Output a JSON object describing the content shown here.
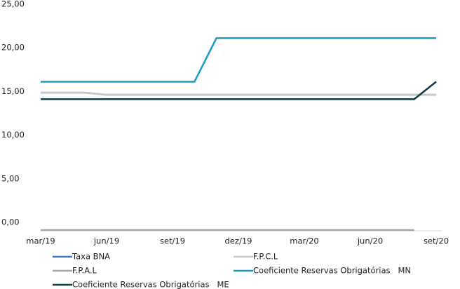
{
  "chart_data": {
    "type": "line",
    "categories": [
      "mar/19",
      null,
      null,
      "jun/19",
      null,
      null,
      "set/19",
      null,
      null,
      "dez/19",
      null,
      null,
      "mar/20",
      null,
      null,
      "jun/20",
      null,
      null,
      "set/20"
    ],
    "series": [
      {
        "name": "Taxa BNA",
        "color": "#4472c4",
        "values": [
          15.75,
          15.75,
          15.75,
          15.5,
          15.5,
          15.5,
          15.5,
          15.5,
          15.5,
          15.5,
          15.5,
          15.5,
          15.5,
          15.5,
          15.5,
          15.5,
          15.5,
          15.5,
          15.5
        ]
      },
      {
        "name": "F.P.C.L",
        "color": "#c8c8c8",
        "values": [
          15.75,
          15.75,
          15.75,
          15.5,
          15.5,
          15.5,
          15.5,
          15.5,
          15.5,
          15.5,
          15.5,
          15.5,
          15.5,
          15.5,
          15.5,
          15.5,
          15.5,
          15.5,
          15.5
        ]
      },
      {
        "name": "F.P.A.L",
        "color": "#a6a6a6",
        "values": [
          0,
          0,
          0,
          0,
          0,
          0,
          0,
          0,
          0,
          0,
          0,
          0,
          0,
          0,
          0,
          0,
          0,
          0,
          null
        ]
      },
      {
        "name": "Coeficiente Reservas Obrigatórias   MN",
        "color": "#1b9cbf",
        "values": [
          17,
          17,
          17,
          17,
          17,
          17,
          17,
          17,
          22,
          22,
          22,
          22,
          22,
          22,
          22,
          22,
          22,
          22,
          22
        ]
      },
      {
        "name": "Coeficiente Reservas Obrigatórias   ME",
        "color": "#0e3a45",
        "values": [
          15,
          15,
          15,
          15,
          15,
          15,
          15,
          15,
          15,
          15,
          15,
          15,
          15,
          15,
          15,
          15,
          15,
          15,
          17
        ]
      }
    ],
    "ylim": [
      0,
      25
    ],
    "yticks": [
      {
        "value": 0,
        "label": "0,00"
      },
      {
        "value": 5,
        "label": "5,00"
      },
      {
        "value": 10,
        "label": "10,00"
      },
      {
        "value": 15,
        "label": "15,00"
      },
      {
        "value": 20,
        "label": "20,00"
      },
      {
        "value": 25,
        "label": "25,00"
      }
    ],
    "grid": false
  }
}
